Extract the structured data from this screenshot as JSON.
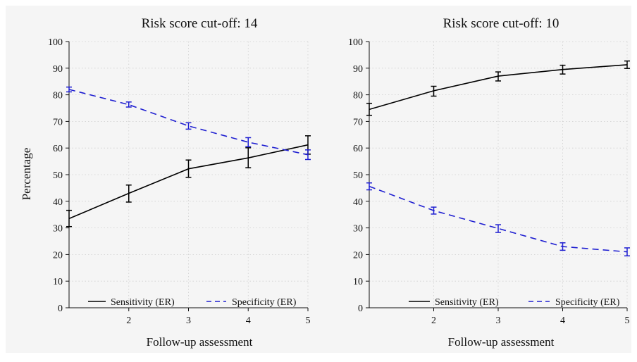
{
  "figure": {
    "ylabel": "Percentage"
  },
  "chart_data": [
    {
      "type": "line",
      "title": "Risk score cut-off: 14",
      "xlabel": "Follow-up assessment",
      "ylabel": "Percentage",
      "xlim": [
        1,
        5
      ],
      "ylim": [
        0,
        100
      ],
      "x_ticks": [
        2,
        3,
        4,
        5
      ],
      "y_ticks": [
        0,
        10,
        20,
        30,
        40,
        50,
        60,
        70,
        80,
        90,
        100
      ],
      "grid": true,
      "legend_position": "bottom",
      "x": [
        1,
        2,
        3,
        4,
        5
      ],
      "series": [
        {
          "name": "Sensitivity (ER)",
          "color": "#000000",
          "dash": "solid",
          "values": [
            33.5,
            43.0,
            52.2,
            56.3,
            61.2
          ],
          "lower": [
            30.5,
            39.7,
            49.0,
            52.6,
            57.7
          ],
          "upper": [
            36.6,
            46.1,
            55.5,
            60.1,
            64.6
          ]
        },
        {
          "name": "Specificity (ER)",
          "color": "#1f1fd1",
          "dash": "dashed",
          "values": [
            82.0,
            76.3,
            68.3,
            62.2,
            57.5
          ],
          "lower": [
            81.1,
            75.4,
            67.1,
            60.5,
            55.7
          ],
          "upper": [
            82.9,
            77.3,
            69.5,
            63.9,
            59.3
          ]
        }
      ]
    },
    {
      "type": "line",
      "title": "Risk score cut-off: 10",
      "xlabel": "Follow-up assessment",
      "ylabel": "",
      "xlim": [
        1,
        5
      ],
      "ylim": [
        0,
        100
      ],
      "x_ticks": [
        2,
        3,
        4,
        5
      ],
      "y_ticks": [
        0,
        10,
        20,
        30,
        40,
        50,
        60,
        70,
        80,
        90,
        100
      ],
      "grid": true,
      "legend_position": "bottom",
      "x": [
        1,
        2,
        3,
        4,
        5
      ],
      "series": [
        {
          "name": "Sensitivity (ER)",
          "color": "#000000",
          "dash": "solid",
          "values": [
            74.5,
            81.5,
            87.0,
            89.5,
            91.3
          ],
          "lower": [
            72.3,
            79.5,
            85.2,
            87.8,
            89.9
          ],
          "upper": [
            76.8,
            83.2,
            88.6,
            91.1,
            92.7
          ]
        },
        {
          "name": "Specificity (ER)",
          "color": "#1f1fd1",
          "dash": "dashed",
          "values": [
            45.6,
            36.5,
            29.8,
            23.0,
            21.0
          ],
          "lower": [
            44.3,
            35.2,
            28.3,
            21.6,
            19.5
          ],
          "upper": [
            46.9,
            37.8,
            31.2,
            24.4,
            22.5
          ]
        }
      ]
    }
  ]
}
